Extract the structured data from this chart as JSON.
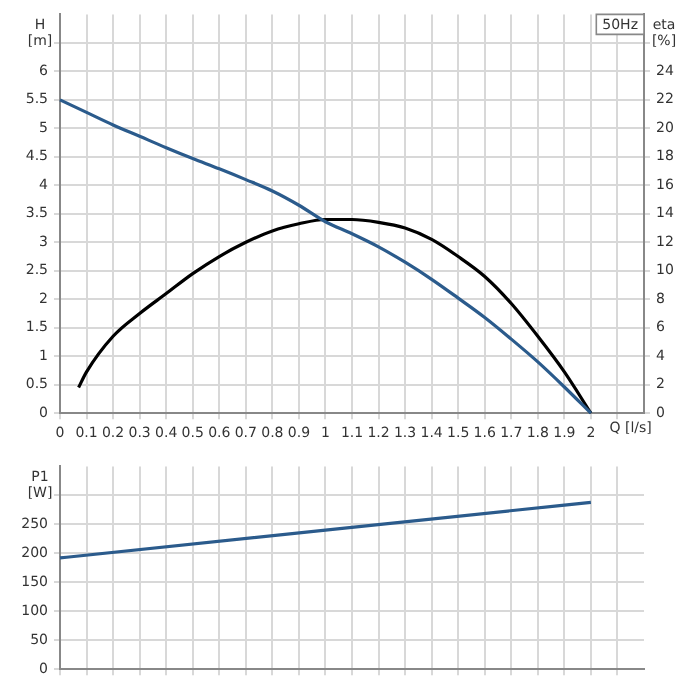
{
  "chart_data": [
    {
      "type": "line",
      "xlabel": "Q [l/s]",
      "ylabel": "H [m]",
      "y2label": "eta [%]",
      "annotations": [
        "50Hz"
      ],
      "grid": true,
      "marker": "none",
      "line_style": "solid",
      "xlim": [
        0,
        2.2
      ],
      "xticks": [
        0,
        0.1,
        0.2,
        0.3,
        0.4,
        0.5,
        0.6,
        0.7,
        0.8,
        0.9,
        1.0,
        1.1,
        1.2,
        1.3,
        1.4,
        1.5,
        1.6,
        1.7,
        1.8,
        1.9,
        2.0,
        {
          "value": 2.1,
          "label": null
        }
      ],
      "ylim": [
        0,
        7
      ],
      "yticks": [
        0,
        0.5,
        1.0,
        1.5,
        2.0,
        2.5,
        3.0,
        3.5,
        4.0,
        4.5,
        5.0,
        5.5,
        6.0,
        {
          "value": 6.5,
          "label": null
        }
      ],
      "y2lim": [
        0,
        28
      ],
      "y2ticks": [
        0,
        2,
        4,
        6,
        8,
        10,
        12,
        14,
        16,
        18,
        20,
        22,
        24,
        {
          "value": 26,
          "label": null
        }
      ],
      "series": [
        {
          "color": "#2b5b8c",
          "x": [
            0,
            0.1,
            0.2,
            0.3,
            0.4,
            0.5,
            0.6,
            0.7,
            0.8,
            0.9,
            1.0,
            1.1,
            1.2,
            1.3,
            1.4,
            1.5,
            1.6,
            1.7,
            1.8,
            1.9,
            2.0
          ],
          "values": [
            5.5,
            5.28,
            5.06,
            4.86,
            4.66,
            4.47,
            4.29,
            4.1,
            3.9,
            3.65,
            3.36,
            3.15,
            2.92,
            2.65,
            2.35,
            2.02,
            1.68,
            1.3,
            0.9,
            0.46,
            0
          ]
        },
        {
          "color": "#000000",
          "axis": "y2",
          "x": [
            0.07,
            0.1,
            0.2,
            0.3,
            0.4,
            0.5,
            0.6,
            0.7,
            0.8,
            0.9,
            1.0,
            1.1,
            1.2,
            1.3,
            1.4,
            1.5,
            1.6,
            1.7,
            1.8,
            1.9,
            2.0
          ],
          "values": [
            1.8,
            2.9,
            5.4,
            7,
            8.4,
            9.8,
            11,
            12,
            12.8,
            13.3,
            13.6,
            13.6,
            13.4,
            13,
            12.2,
            11,
            9.6,
            7.7,
            5.4,
            2.9,
            0
          ]
        }
      ]
    },
    {
      "type": "line",
      "ylabel": "P1 [W]",
      "grid": true,
      "marker": "none",
      "line_style": "solid",
      "tick_labels": "y",
      "xlim": [
        0,
        2.2
      ],
      "xticks": [
        0,
        0.1,
        0.2,
        0.3,
        0.4,
        0.5,
        0.6,
        0.7,
        0.8,
        0.9,
        1.0,
        1.1,
        1.2,
        1.3,
        1.4,
        1.5,
        1.6,
        1.7,
        1.8,
        1.9,
        2.0,
        {
          "value": 2.1,
          "label": null
        }
      ],
      "ylim": [
        0,
        350
      ],
      "yticks": [
        0,
        50,
        100,
        150,
        200,
        250,
        {
          "value": 300,
          "label": null
        }
      ],
      "series": [
        {
          "color": "#2b5b8c",
          "x": [
            0,
            1.0,
            2.0
          ],
          "values": [
            192,
            240,
            288
          ]
        }
      ]
    }
  ]
}
